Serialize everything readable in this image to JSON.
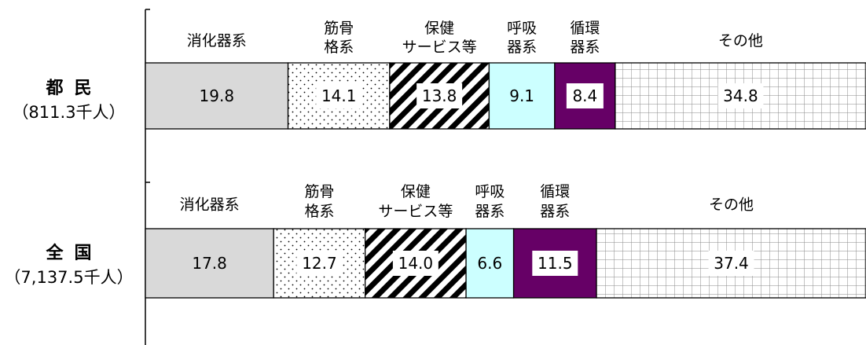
{
  "chart_data": {
    "type": "stacked-bar-horizontal",
    "orientation": "horizontal",
    "stacked": true,
    "percent_scale": [
      0,
      100
    ],
    "categories": [
      "消化器系",
      "筋骨格系",
      "保健サービス等",
      "呼吸器系",
      "循環器系",
      "その他"
    ],
    "category_labels": [
      [
        "消化器系"
      ],
      [
        "筋骨",
        "格系"
      ],
      [
        "保健",
        "サービス等"
      ],
      [
        "呼吸",
        "器系"
      ],
      [
        "循環",
        "器系"
      ],
      [
        "その他"
      ]
    ],
    "category_styles": [
      {
        "fill": "#d9d9d9",
        "pattern": "solid"
      },
      {
        "fill": "#ffffff",
        "pattern": "dots"
      },
      {
        "fill": "#ffffff",
        "pattern": "diagonal-stripes"
      },
      {
        "fill": "#ccffff",
        "pattern": "solid"
      },
      {
        "fill": "#660066",
        "pattern": "solid"
      },
      {
        "fill": "#ffffff",
        "pattern": "grid"
      }
    ],
    "rows": [
      {
        "name": "都民",
        "sublabel": "（811.3千人）",
        "values": [
          19.8,
          14.1,
          13.8,
          9.1,
          8.4,
          34.8
        ]
      },
      {
        "name": "全国",
        "sublabel": "（7,137.5千人）",
        "values": [
          17.8,
          12.7,
          14.0,
          6.6,
          11.5,
          37.4
        ]
      }
    ],
    "data_labels": [
      [
        "19.8",
        "14.1",
        "13.8",
        "9.1",
        "8.4",
        "34.8"
      ],
      [
        "17.8",
        "12.7",
        "14.0",
        "6.6",
        "11.5",
        "37.4"
      ]
    ],
    "grid": false,
    "legend": "none"
  }
}
